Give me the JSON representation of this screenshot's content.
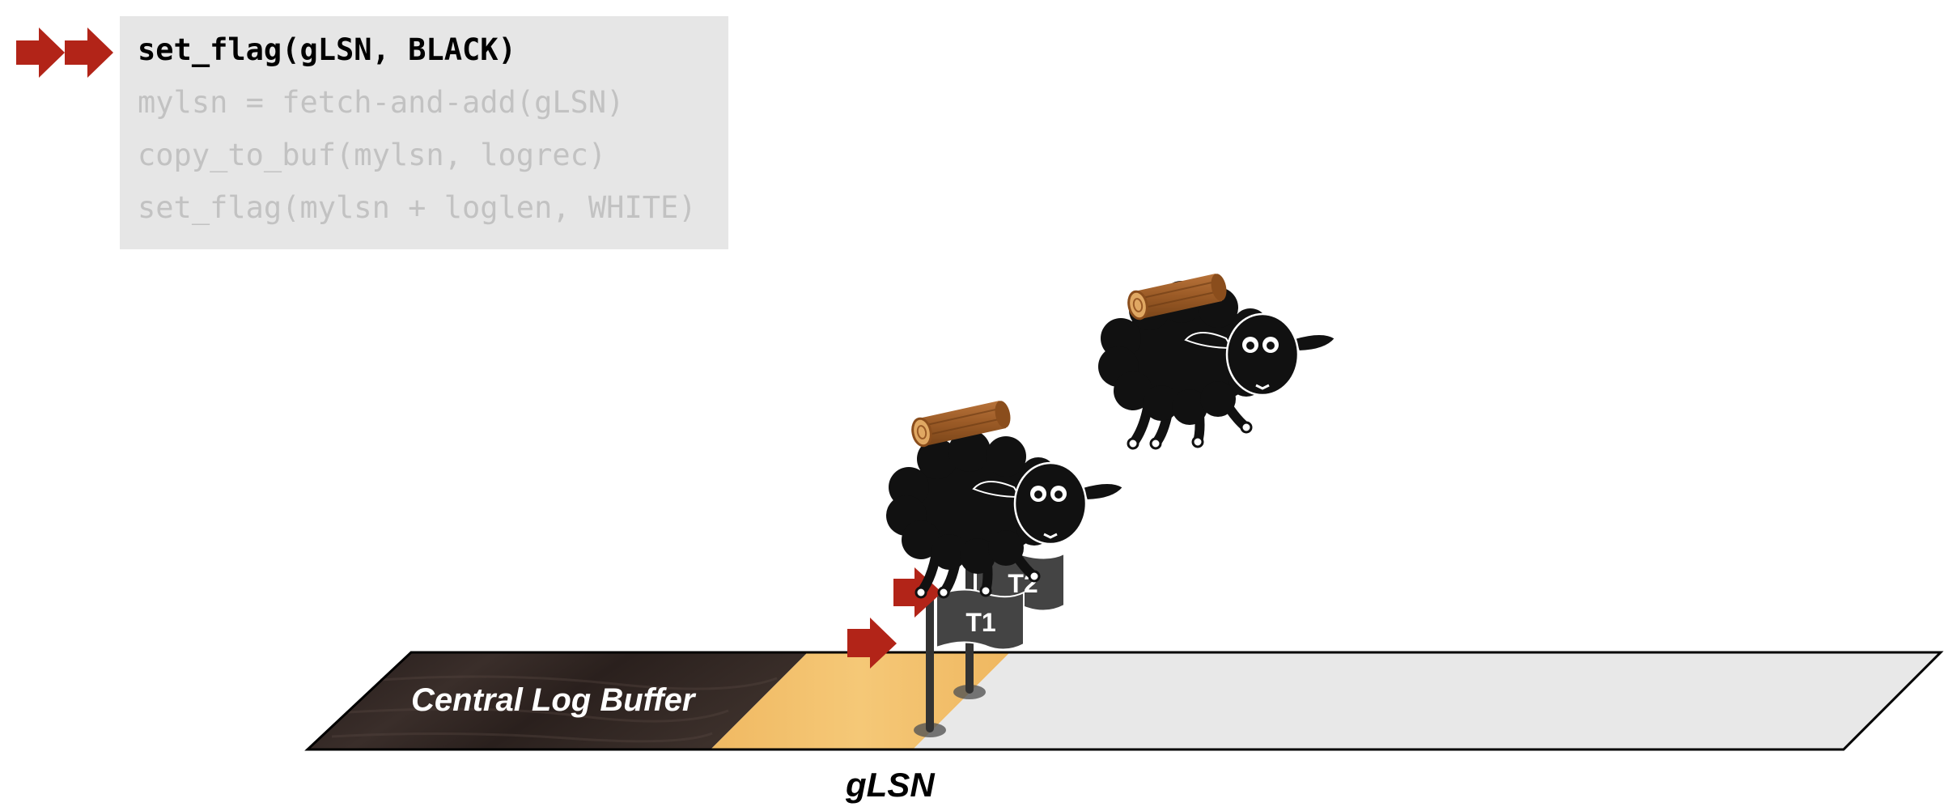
{
  "code": {
    "lines": [
      "set_flag(gLSN, BLACK)",
      "mylsn = fetch-and-add(gLSN)",
      "copy_to_buf(mylsn, logrec)",
      "set_flag(mylsn + loglen, WHITE)"
    ],
    "active_line": 0
  },
  "buffer": {
    "label": "Central Log Buffer"
  },
  "pointer": {
    "label": "gLSN"
  },
  "flags": [
    {
      "label": "T1"
    },
    {
      "label": "T2"
    }
  ],
  "colors": {
    "arrow": "#b22418",
    "code_bg": "#e6e6e6",
    "active_code": "#000000",
    "inactive_code": "#c2c2c2",
    "filled_region": "#2f2522",
    "reserved_region": "#f2c06a",
    "empty_region": "#e8e8e8",
    "flag": "#444444",
    "sheep": "#111111",
    "log": "#a0612a"
  },
  "icons": [
    "step-arrow-icon",
    "sheep-icon",
    "log-icon",
    "flag-icon"
  ]
}
